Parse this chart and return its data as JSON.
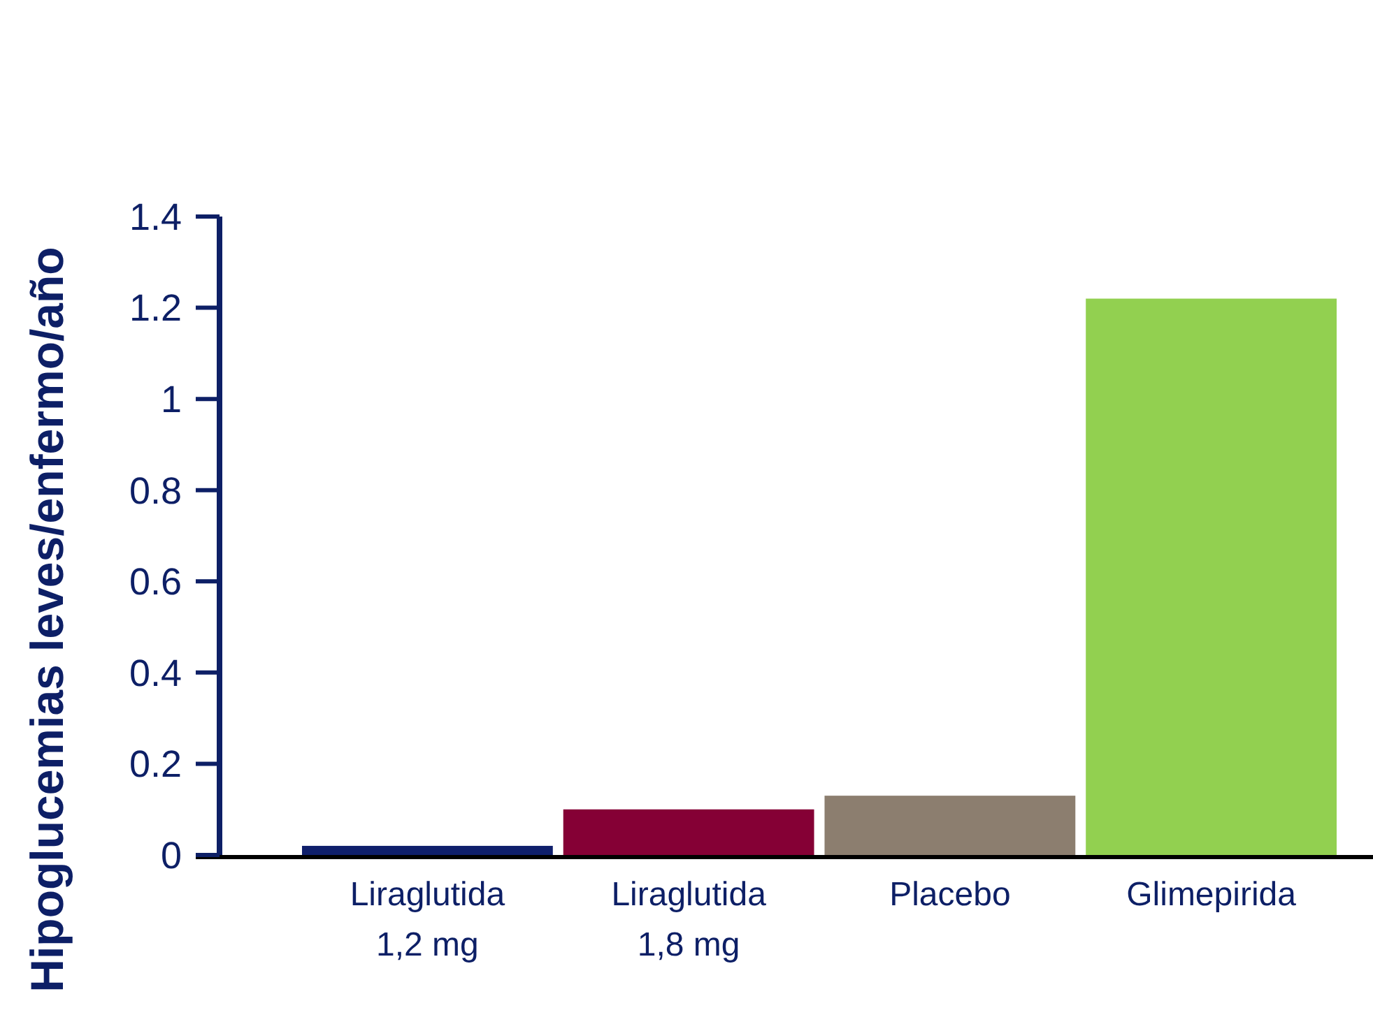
{
  "chart_data": {
    "type": "bar",
    "ylabel": "Hipoglucemias leves/enfermo/año",
    "categories": [
      "Liraglutida 1,2 mg",
      "Liraglutida 1,8 mg",
      "Placebo",
      "Glimepirida"
    ],
    "values": [
      0.02,
      0.1,
      0.13,
      1.22
    ],
    "colors": [
      "#0f1f6b",
      "#850035",
      "#8c7e6f",
      "#92d050"
    ],
    "ylim": [
      0,
      1.4
    ],
    "yticks": [
      0,
      0.2,
      0.4,
      0.6,
      0.8,
      1,
      1.2,
      1.4
    ],
    "grid": false
  }
}
